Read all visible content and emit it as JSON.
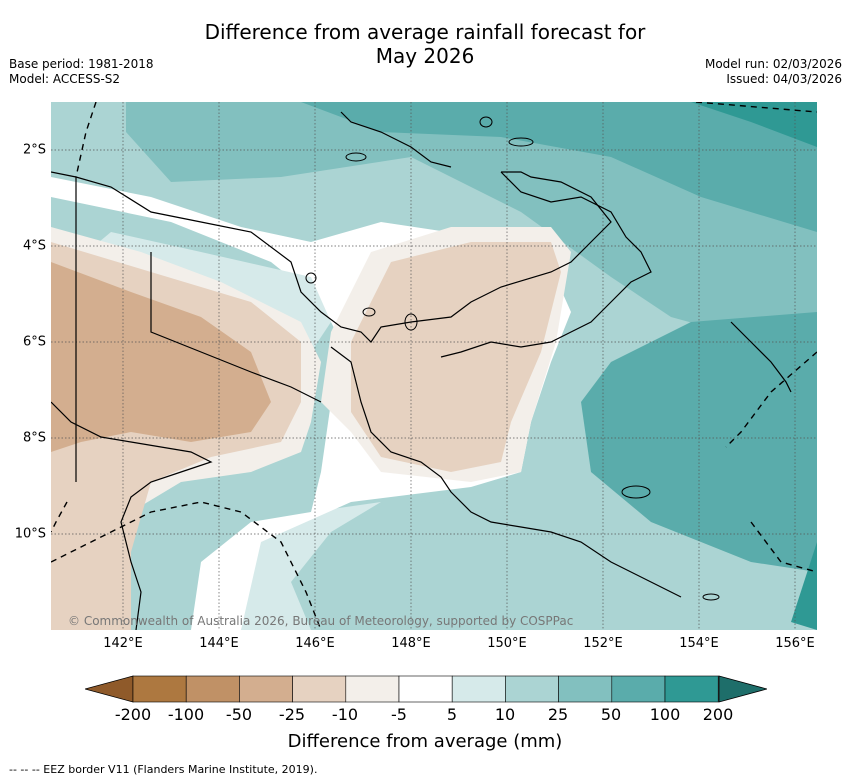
{
  "title_line1": "Difference from average rainfall forecast for",
  "title_line2": "May 2026",
  "meta_left": [
    "Base period: 1981-2018",
    "Model: ACCESS-S2"
  ],
  "meta_right": [
    "Model run: 02/03/2026",
    "Issued: 04/03/2026"
  ],
  "copyright": "© Commonwealth of Australia 2026, Bureau of Meteorology, supported by COSPPac",
  "longitude_labels": [
    "142°E",
    "144°E",
    "146°E",
    "148°E",
    "150°E",
    "152°E",
    "154°E",
    "156°E"
  ],
  "latitude_labels": [
    "2°S",
    "4°S",
    "6°S",
    "8°S",
    "10°S"
  ],
  "colorbar": {
    "label": "Difference from average (mm)",
    "ticks": [
      "-200",
      "-100",
      "-50",
      "-25",
      "-10",
      "-5",
      "5",
      "10",
      "25",
      "50",
      "100",
      "200"
    ],
    "colors": [
      "#8f5a2a",
      "#ad7840",
      "#c09166",
      "#d3ae8f",
      "#e6d2c1",
      "#f3efea",
      "#ffffff",
      "#d6eaea",
      "#abd4d3",
      "#82c0bf",
      "#5aacab",
      "#2f9994",
      "#1e6e6a"
    ]
  },
  "legend_text": "--  --  -- EEZ border V11 (Flanders Marine Institute, 2019)."
}
